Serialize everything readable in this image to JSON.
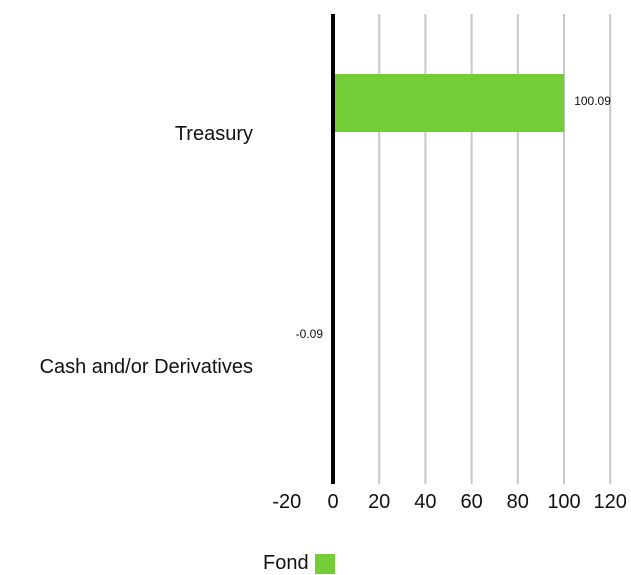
{
  "chart_data": {
    "type": "bar",
    "orientation": "horizontal",
    "categories": [
      "Treasury",
      "Cash and/or Derivatives"
    ],
    "series": [
      {
        "name": "Fond",
        "values": [
          100.09,
          -0.09
        ],
        "color": "#74cc36"
      }
    ],
    "data_labels": [
      "100.09",
      "-0.09"
    ],
    "xlim": [
      -20,
      120
    ],
    "xticks": [
      "-20",
      "0",
      "20",
      "40",
      "60",
      "80",
      "100",
      "120"
    ],
    "xtick_values": [
      -20,
      0,
      20,
      40,
      60,
      80,
      100,
      120
    ],
    "grid": true,
    "legend_position": "bottom-center",
    "title": "",
    "xlabel": "",
    "ylabel": ""
  },
  "legend": {
    "label": "Fond",
    "color": "#74cc36"
  }
}
